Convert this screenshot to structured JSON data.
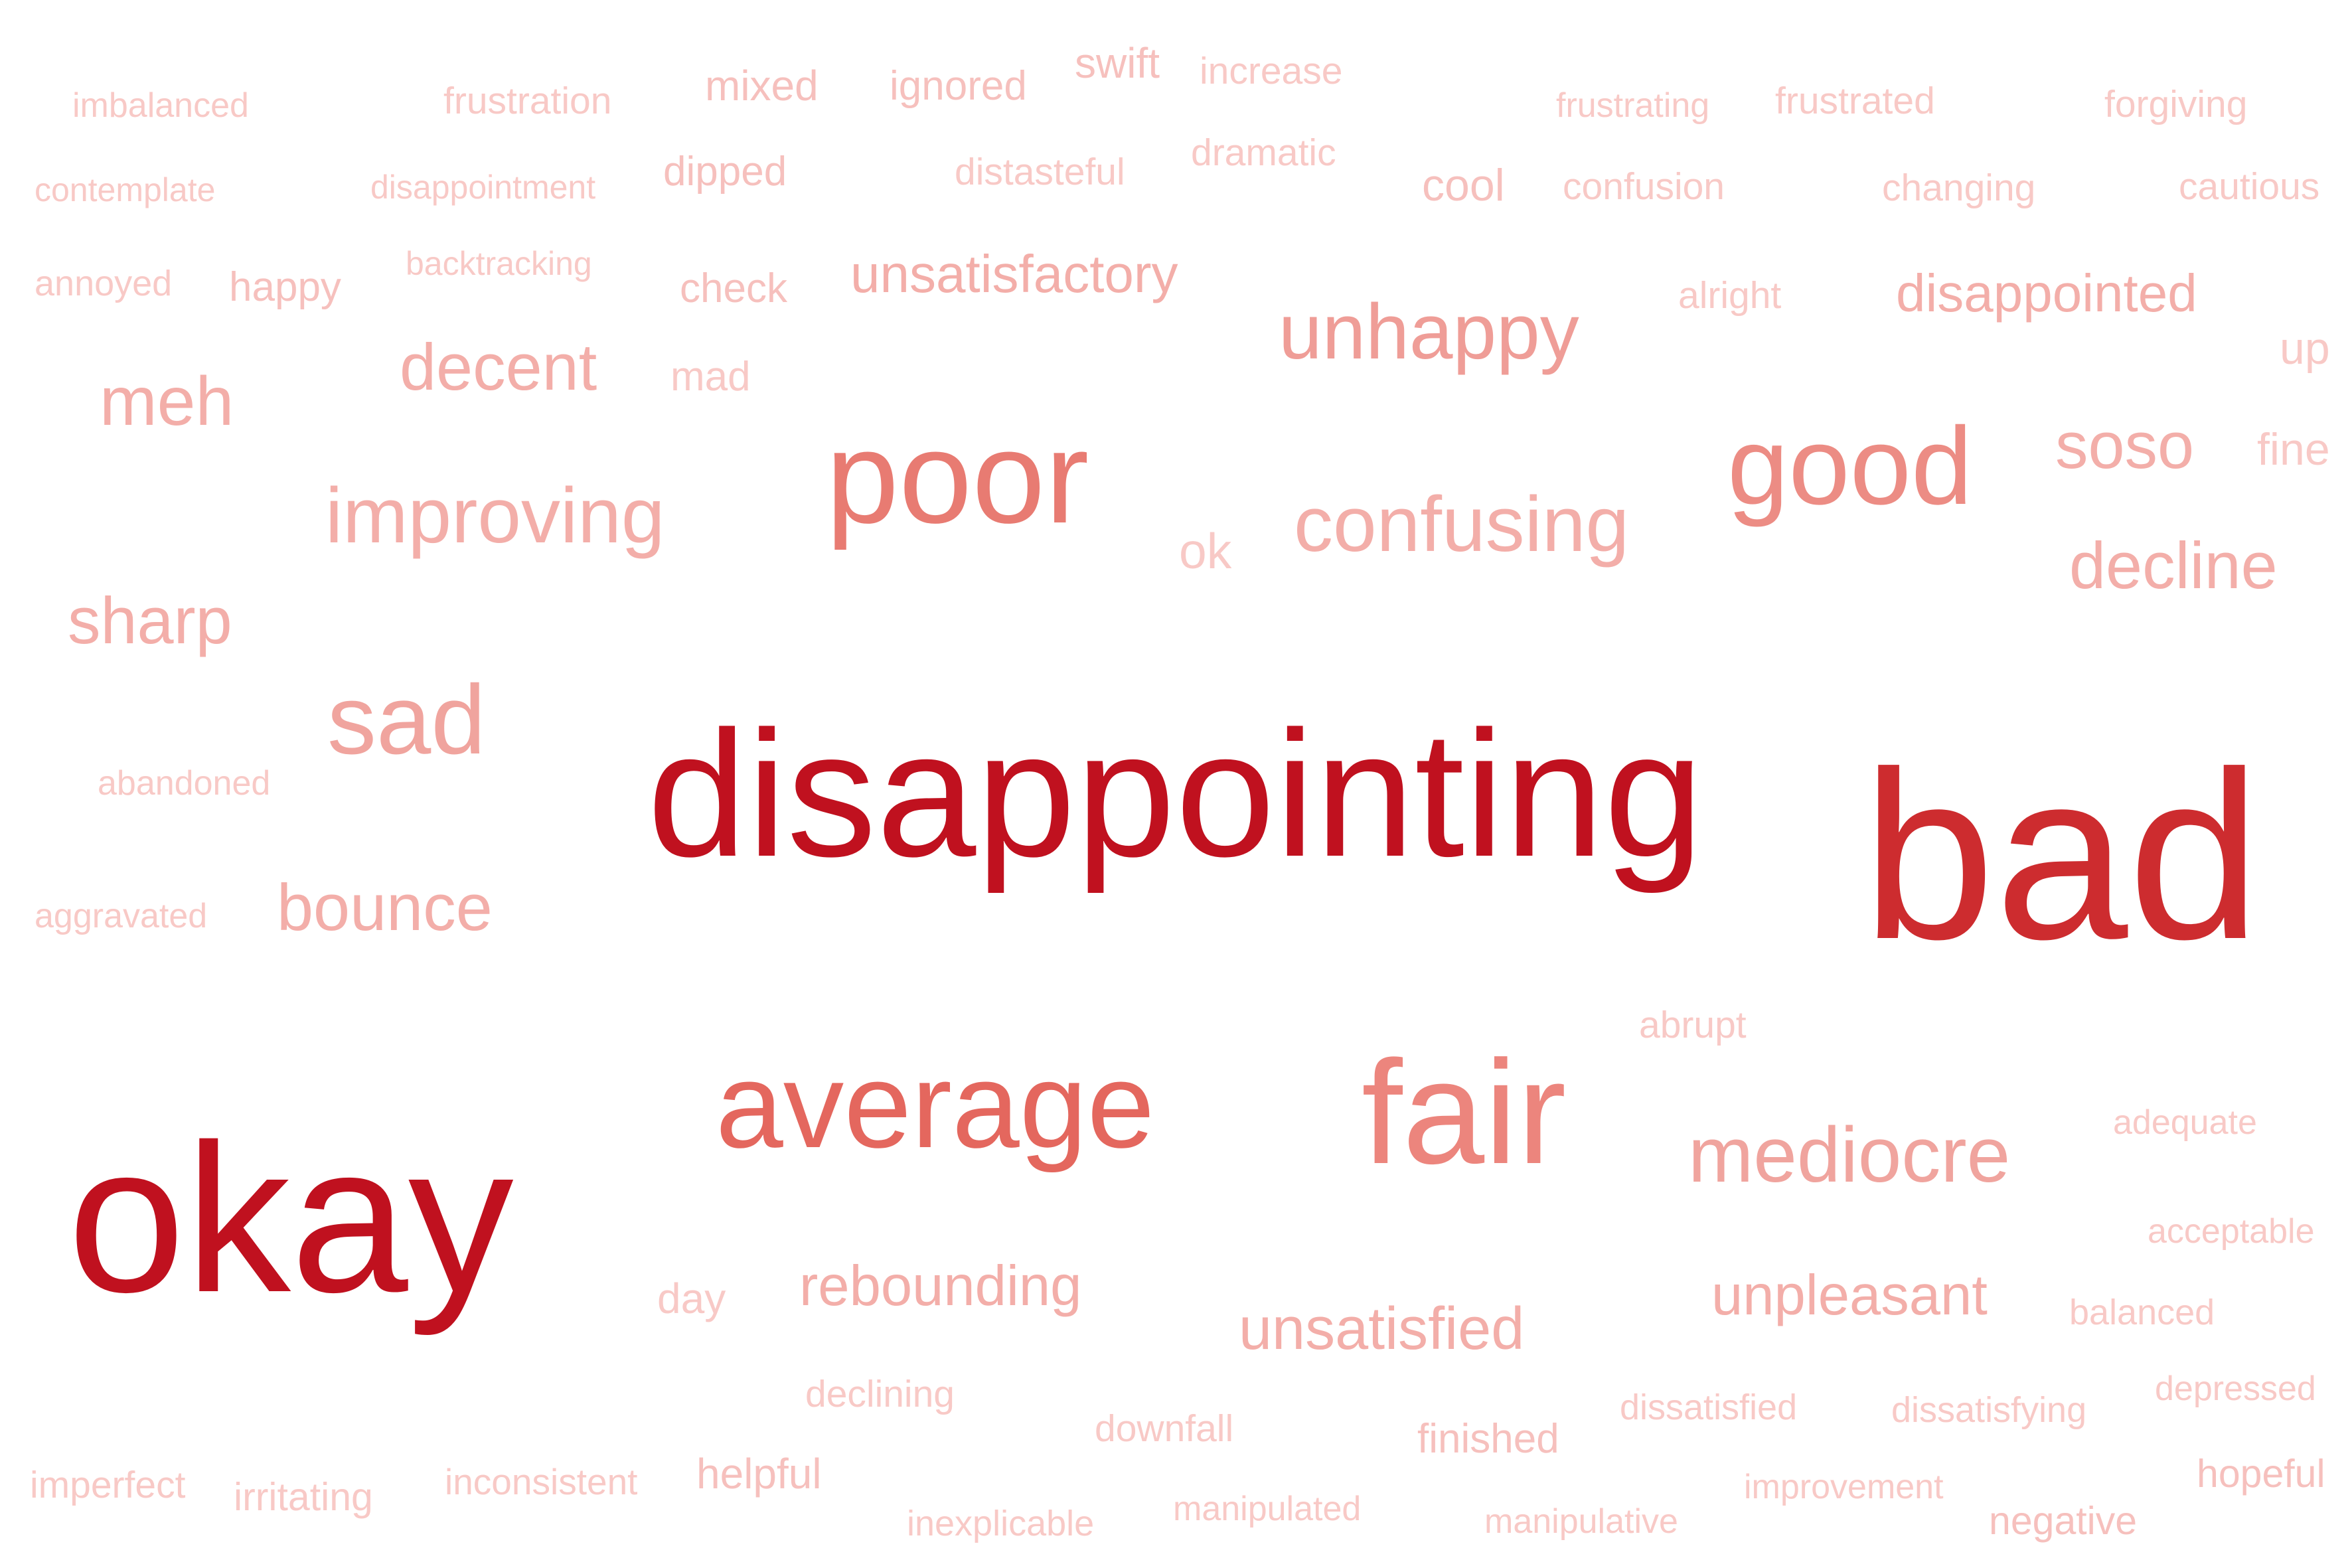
{
  "words": [
    {
      "text": "imbalanced",
      "color": "#f8c9c6"
    },
    {
      "text": "frustration",
      "color": "#f8c9c6"
    },
    {
      "text": "mixed",
      "color": "#f6c0bd"
    },
    {
      "text": "ignored",
      "color": "#f6c0bd"
    },
    {
      "text": "swift",
      "color": "#f6c0bd"
    },
    {
      "text": "increase",
      "color": "#f8c9c6"
    },
    {
      "text": "frustrating",
      "color": "#f8c9c6"
    },
    {
      "text": "frustrated",
      "color": "#f8c9c6"
    },
    {
      "text": "forgiving",
      "color": "#f8c9c6"
    },
    {
      "text": "contemplate",
      "color": "#f8c9c6"
    },
    {
      "text": "disappointment",
      "color": "#f8c9c6"
    },
    {
      "text": "dipped",
      "color": "#f6c0bd"
    },
    {
      "text": "distasteful",
      "color": "#f8c9c6"
    },
    {
      "text": "dramatic",
      "color": "#f8c9c6"
    },
    {
      "text": "cool",
      "color": "#f6c0bd"
    },
    {
      "text": "confusion",
      "color": "#f8c9c6"
    },
    {
      "text": "changing",
      "color": "#f8c9c6"
    },
    {
      "text": "cautious",
      "color": "#f8c9c6"
    },
    {
      "text": "annoyed",
      "color": "#f8c9c6"
    },
    {
      "text": "happy",
      "color": "#f6c0bd"
    },
    {
      "text": "backtracking",
      "color": "#f8c9c6"
    },
    {
      "text": "check",
      "color": "#f6c0bd"
    },
    {
      "text": "unsatisfactory",
      "color": "#f3aea9"
    },
    {
      "text": "alright",
      "color": "#f8c9c6"
    },
    {
      "text": "disappointed",
      "color": "#f3aea9"
    },
    {
      "text": "unhappy",
      "color": "#ef9d97"
    },
    {
      "text": "up",
      "color": "#f8c9c6"
    },
    {
      "text": "meh",
      "color": "#f3aea9"
    },
    {
      "text": "decent",
      "color": "#f3aea9"
    },
    {
      "text": "mad",
      "color": "#f8c9c6"
    },
    {
      "text": "soso",
      "color": "#f3aea9"
    },
    {
      "text": "fine",
      "color": "#f8c9c6"
    },
    {
      "text": "poor",
      "color": "#e87b72"
    },
    {
      "text": "good",
      "color": "#ec8c84"
    },
    {
      "text": "improving",
      "color": "#f3aea9"
    },
    {
      "text": "ok",
      "color": "#f8c9c6"
    },
    {
      "text": "confusing",
      "color": "#f3aea9"
    },
    {
      "text": "decline",
      "color": "#f3aea9"
    },
    {
      "text": "sharp",
      "color": "#f3aea9"
    },
    {
      "text": "sad",
      "color": "#f0a49e"
    },
    {
      "text": "disappointing",
      "color": "#c0111f"
    },
    {
      "text": "bad",
      "color": "#cd2c2f"
    },
    {
      "text": "abandoned",
      "color": "#f8c9c6"
    },
    {
      "text": "aggravated",
      "color": "#f8c9c6"
    },
    {
      "text": "bounce",
      "color": "#f3aea9"
    },
    {
      "text": "abrupt",
      "color": "#f8c9c6"
    },
    {
      "text": "average",
      "color": "#e4675e"
    },
    {
      "text": "fair",
      "color": "#ec857d"
    },
    {
      "text": "adequate",
      "color": "#f8c9c6"
    },
    {
      "text": "mediocre",
      "color": "#f0a49e"
    },
    {
      "text": "okay",
      "color": "#c0111f"
    },
    {
      "text": "acceptable",
      "color": "#f8c9c6"
    },
    {
      "text": "day",
      "color": "#f8c9c6"
    },
    {
      "text": "rebounding",
      "color": "#f3aea9"
    },
    {
      "text": "unsatisfied",
      "color": "#f3aea9"
    },
    {
      "text": "unpleasant",
      "color": "#f3aea9"
    },
    {
      "text": "balanced",
      "color": "#f8c9c6"
    },
    {
      "text": "declining",
      "color": "#f8c9c6"
    },
    {
      "text": "downfall",
      "color": "#f8c9c6"
    },
    {
      "text": "finished",
      "color": "#f6c0bd"
    },
    {
      "text": "dissatisfied",
      "color": "#f8c9c6"
    },
    {
      "text": "dissatisfying",
      "color": "#f8c9c6"
    },
    {
      "text": "depressed",
      "color": "#f8c9c6"
    },
    {
      "text": "imperfect",
      "color": "#f8c9c6"
    },
    {
      "text": "irritating",
      "color": "#f8c9c6"
    },
    {
      "text": "inconsistent",
      "color": "#f8c9c6"
    },
    {
      "text": "helpful",
      "color": "#f6c0bd"
    },
    {
      "text": "inexplicable",
      "color": "#f8c9c6"
    },
    {
      "text": "manipulated",
      "color": "#f8c9c6"
    },
    {
      "text": "manipulative",
      "color": "#f8c9c6"
    },
    {
      "text": "improvement",
      "color": "#f8c9c6"
    },
    {
      "text": "hopeful",
      "color": "#f6c0bd"
    },
    {
      "text": "negative",
      "color": "#f6c0bd"
    }
  ]
}
